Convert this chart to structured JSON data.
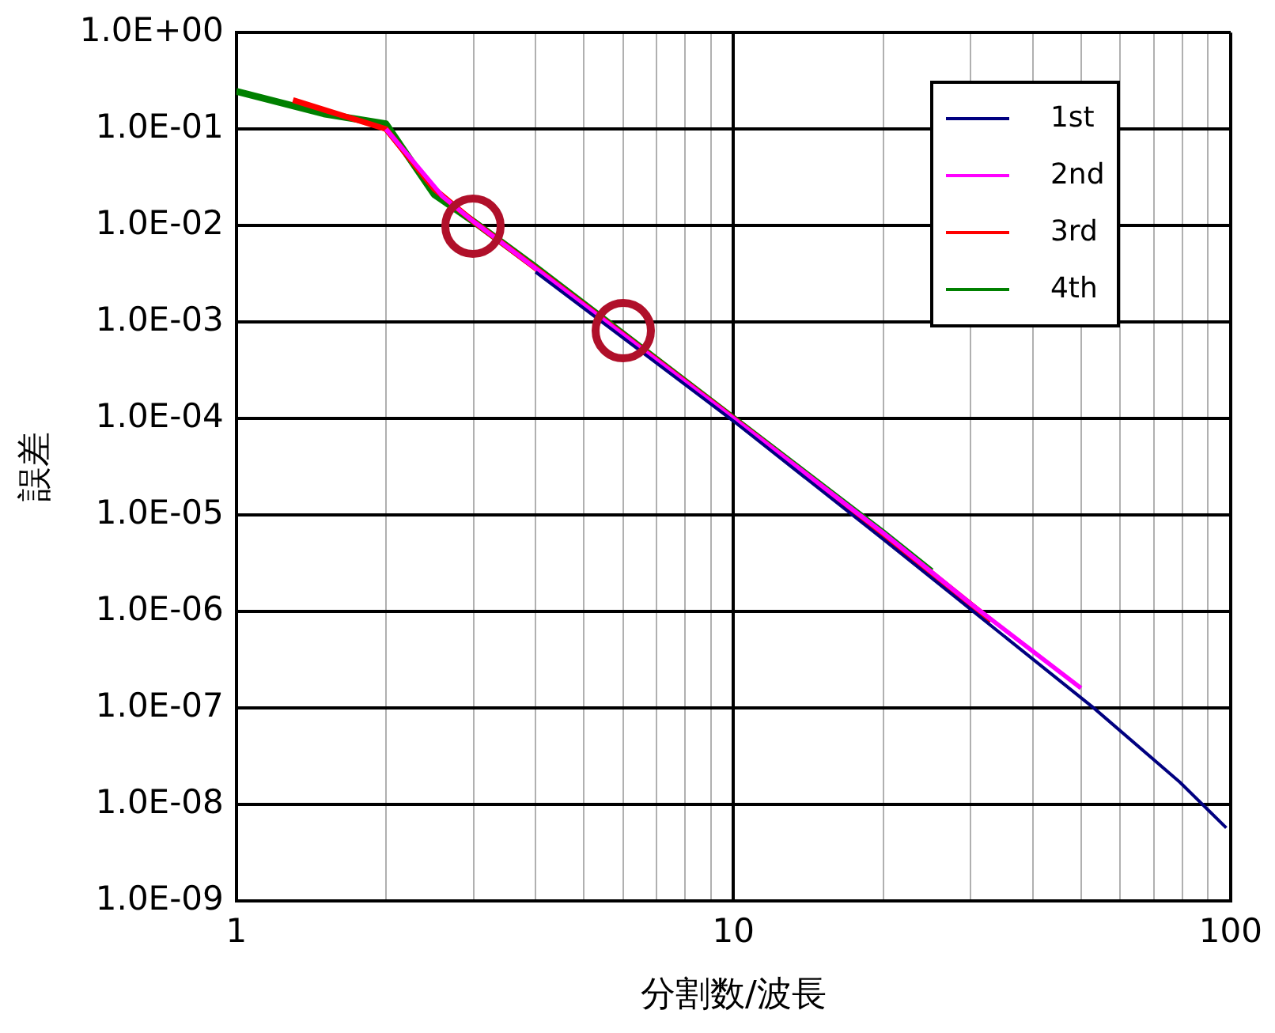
{
  "chart_data": {
    "type": "line",
    "xlabel": "分割数/波長",
    "ylabel": "誤差",
    "log": "xy",
    "grid": true,
    "legend": "top right",
    "marker": "none",
    "line_style": "solid",
    "xlim": [
      1,
      100
    ],
    "xticks": [
      1,
      {
        "value": 2,
        "label": null
      },
      {
        "value": 3,
        "label": null
      },
      {
        "value": 4,
        "label": null
      },
      {
        "value": 5,
        "label": null
      },
      {
        "value": 6,
        "label": null
      },
      {
        "value": 7,
        "label": null
      },
      {
        "value": 8,
        "label": null
      },
      {
        "value": 9,
        "label": null
      },
      10,
      {
        "value": 20,
        "label": null
      },
      {
        "value": 30,
        "label": null
      },
      {
        "value": 40,
        "label": null
      },
      {
        "value": 50,
        "label": null
      },
      {
        "value": 60,
        "label": null
      },
      {
        "value": 70,
        "label": null
      },
      {
        "value": 80,
        "label": null
      },
      {
        "value": 90,
        "label": null
      },
      100
    ],
    "ylim": [
      1e-09,
      1
    ],
    "yticks": [
      {
        "value": 1,
        "label": "1.0E+00"
      },
      {
        "value": 0.1,
        "label": "1.0E-01"
      },
      {
        "value": 0.01,
        "label": "1.0E-02"
      },
      {
        "value": 0.001,
        "label": "1.0E-03"
      },
      {
        "value": 0.0001,
        "label": "1.0E-04"
      },
      {
        "value": 1e-05,
        "label": "1.0E-05"
      },
      {
        "value": 1e-06,
        "label": "1.0E-06"
      },
      {
        "value": 1e-07,
        "label": "1.0E-07"
      },
      {
        "value": 1e-08,
        "label": "1.0E-08"
      },
      {
        "value": 1e-09,
        "label": "1.0E-09"
      }
    ],
    "series": [
      {
        "name": "1st",
        "color": "#000080",
        "x": [
          4,
          10,
          20,
          30,
          53,
          79,
          98
        ],
        "values": [
          0.0033,
          9.4e-05,
          5.6e-06,
          1.05e-06,
          1e-07,
          1.7e-08,
          5.7e-09
        ]
      },
      {
        "name": "2nd",
        "color": "#ff00ff",
        "x": [
          2,
          2.6,
          3,
          4,
          10,
          20,
          30,
          50
        ],
        "values": [
          0.1,
          0.02,
          0.011,
          0.0036,
          0.0001,
          6.5e-06,
          1.2e-06,
          1.6e-07
        ]
      },
      {
        "name": "3rd",
        "color": "#ff0000",
        "x": [
          1.3,
          2,
          2.5,
          3,
          4,
          10,
          20,
          33
        ],
        "values": [
          0.2,
          0.1,
          0.024,
          0.011,
          0.0036,
          0.0001,
          6.3e-06,
          8e-07
        ]
      },
      {
        "name": "4th",
        "color": "#008000",
        "x": [
          1,
          1.5,
          2,
          2.5,
          3,
          4,
          10,
          20,
          25
        ],
        "values": [
          0.246,
          0.144,
          0.113,
          0.021,
          0.011,
          0.0037,
          0.0001,
          6.5e-06,
          2.6e-06
        ]
      }
    ]
  }
}
